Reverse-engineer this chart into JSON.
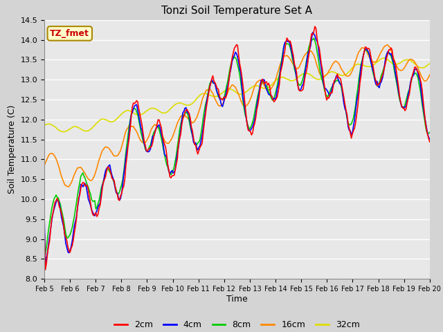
{
  "title": "Tonzi Soil Temperature Set A",
  "xlabel": "Time",
  "ylabel": "Soil Temperature (C)",
  "ylim": [
    8.0,
    14.5
  ],
  "xlim_days": [
    0,
    15
  ],
  "bg_color": "#d4d4d4",
  "plot_bg": "#e8e8e8",
  "grid_color": "#ffffff",
  "colors": {
    "2cm": "#ff0000",
    "4cm": "#0000ff",
    "8cm": "#00cc00",
    "16cm": "#ff8800",
    "32cm": "#dddd00"
  },
  "annotation_text": "TZ_fmet",
  "annotation_bg": "#ffffcc",
  "annotation_fg": "#cc0000",
  "annotation_border": "#aa8800",
  "tick_labels": [
    "Feb 5",
    "Feb 6",
    "Feb 7",
    "Feb 8",
    "Feb 9",
    "Feb 10",
    "Feb 11",
    "Feb 12",
    "Feb 13",
    "Feb 14",
    "Feb 15",
    "Feb 16",
    "Feb 17",
    "Feb 18",
    "Feb 19",
    "Feb 20"
  ],
  "ytick_labels": [
    "8.0",
    "8.5",
    "9.0",
    "9.5",
    "10.0",
    "10.5",
    "11.0",
    "11.5",
    "12.0",
    "12.5",
    "13.0",
    "13.5",
    "14.0",
    "14.5"
  ],
  "ytick_vals": [
    8.0,
    8.5,
    9.0,
    9.5,
    10.0,
    10.5,
    11.0,
    11.5,
    12.0,
    12.5,
    13.0,
    13.5,
    14.0,
    14.5
  ]
}
